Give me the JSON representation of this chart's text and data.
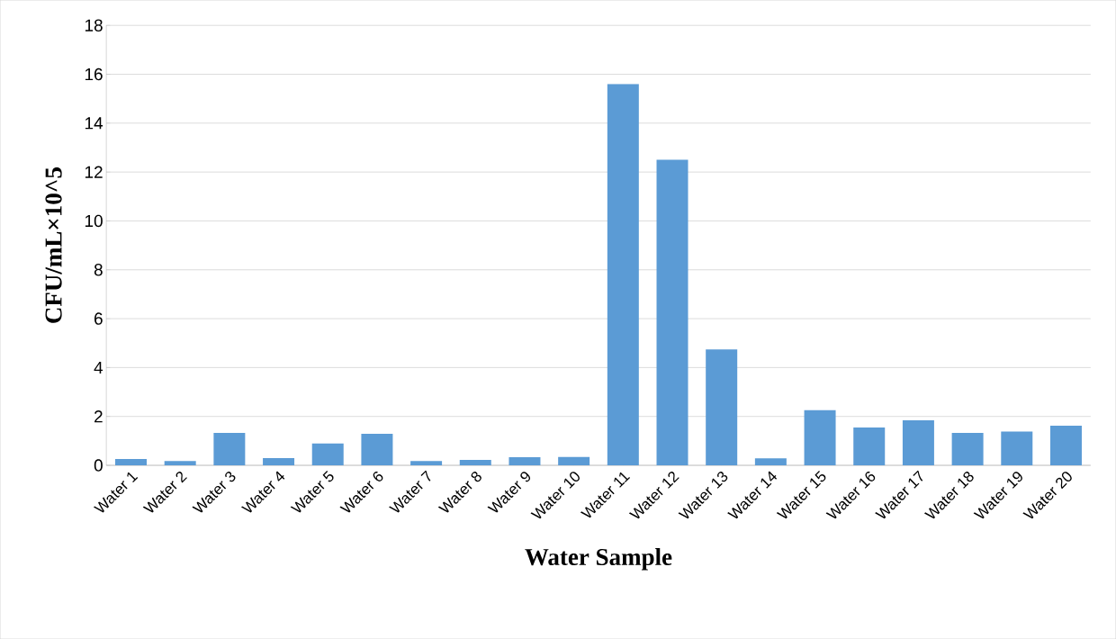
{
  "chart_data": {
    "type": "bar",
    "xlabel": "Water Sample",
    "ylabel": "CFU/mL×10^5",
    "categories": [
      "Water 1",
      "Water 2",
      "Water 3",
      "Water 4",
      "Water 5",
      "Water 6",
      "Water 7",
      "Water 8",
      "Water 9",
      "Water 10",
      "Water 11",
      "Water 12",
      "Water 13",
      "Water 14",
      "Water 15",
      "Water 16",
      "Water 17",
      "Water 18",
      "Water 19",
      "Water 20"
    ],
    "values": [
      0.26,
      0.18,
      1.33,
      0.3,
      0.89,
      1.29,
      0.18,
      0.22,
      0.33,
      0.34,
      15.6,
      12.5,
      4.74,
      0.29,
      2.26,
      1.55,
      1.84,
      1.33,
      1.38,
      1.62
    ],
    "color": "#5b9bd5",
    "ylim": [
      0,
      18
    ],
    "yticks": [
      0,
      2,
      4,
      6,
      8,
      10,
      12,
      14,
      16,
      18
    ],
    "grid": "y"
  }
}
